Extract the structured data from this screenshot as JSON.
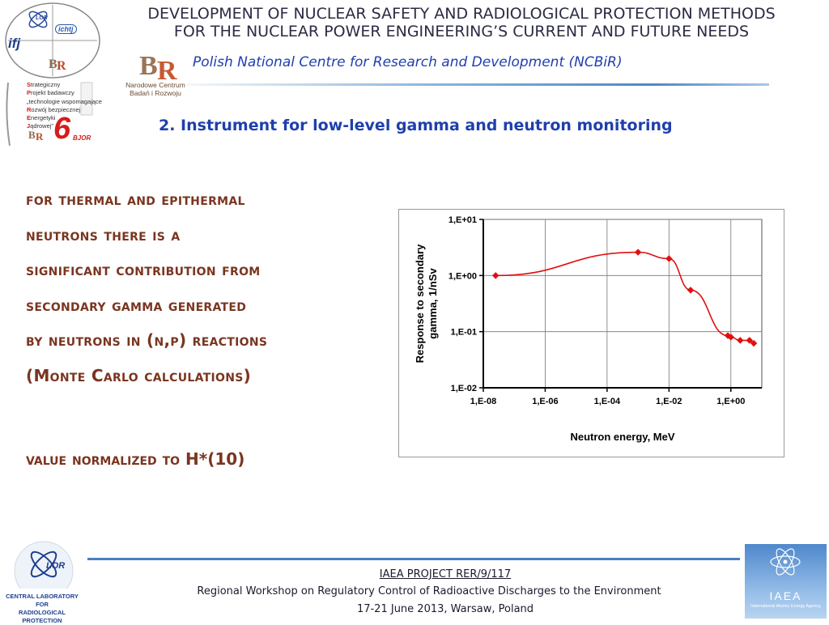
{
  "header": {
    "title_line1": "DEVELOPMENT OF NUCLEAR SAFETY AND RADIOLOGICAL PROTECTION METHODS",
    "title_line2": "FOR THE NUCLEAR POWER ENGINEERING’S CURRENT AND FUTURE NEEDS",
    "subtitle": "Polish National Centre for Research and Development (NCBiR)",
    "ncbir_logo_text_1": "Narodowe Centrum",
    "ncbir_logo_text_2": "Badań i Rozwoju"
  },
  "left_logo": {
    "items": [
      {
        "initial": "S",
        "rest": "trategiczny"
      },
      {
        "initial": "P",
        "rest": "rojekt badawczy"
      },
      {
        "initial": "",
        "rest": "„technologie wspomagające"
      },
      {
        "initial": "R",
        "rest": "ozwój bezpiecznej"
      },
      {
        "initial": "E",
        "rest": "nergetyki"
      },
      {
        "initial": "J",
        "rest": "ądrowej”"
      }
    ],
    "number": "6",
    "number_label": "BJOR",
    "badge_lor": "LOR",
    "badge_ichtj": "ichtj",
    "badge_ifj": "ifj"
  },
  "section_title": "2. Instrument for low-level gamma and neutron monitoring",
  "body": {
    "lines": [
      "for thermal and epithermal",
      "neutrons there is a",
      "significant contribution from",
      "secondary gamma generated",
      "by neutrons in (n,p) reactions",
      "(Monte Carlo calculations)"
    ],
    "note": "value normalized to H*(10)"
  },
  "chart_data": {
    "type": "line",
    "title": "",
    "xlabel": "Neutron energy, MeV",
    "ylabel_line1": "Response to secondary",
    "ylabel_line2": "gamma, 1/nSv",
    "xscale": "log",
    "yscale": "log",
    "xlim": [
      1e-08,
      10
    ],
    "ylim": [
      0.01,
      10
    ],
    "x_ticks": [
      "1,E-08",
      "1,E-06",
      "1,E-04",
      "1,E-02",
      "1,E+00"
    ],
    "y_ticks": [
      "1,E+01",
      "1,E+00",
      "1,E-01",
      "1,E-02"
    ],
    "grid": true,
    "series": [
      {
        "color": "#e01010",
        "x": [
          2.5e-08,
          0.001,
          0.01,
          0.05,
          0.8,
          1.0,
          2.0,
          4.0,
          5.5
        ],
        "y": [
          1.0,
          2.6,
          2.0,
          0.55,
          0.085,
          0.08,
          0.07,
          0.07,
          0.062
        ]
      }
    ]
  },
  "footer": {
    "project": "IAEA PROJECT RER/9/117",
    "workshop": "Regional Workshop on Regulatory Control of Radioactive Discharges to the Environment",
    "dates": "17-21 June 2013, Warsaw, Poland",
    "clor_label_1": "CENTRAL LABORATORY",
    "clor_label_2": "FOR",
    "clor_label_3": "RADIOLOGICAL",
    "clor_label_4": "PROTECTION",
    "clor_badge": "LOR",
    "iaea_label": "IAEA",
    "iaea_sub": "International Atomic Energy Agency"
  },
  "colors": {
    "accent_blue": "#1f3fae",
    "body_brown": "#7a3520",
    "series_red": "#e01010"
  }
}
